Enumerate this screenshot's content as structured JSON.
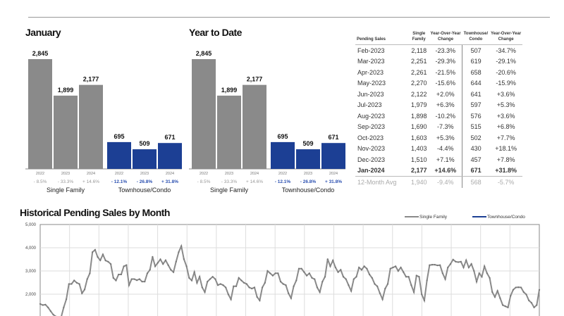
{
  "colors": {
    "single_family": "#8a8a8a",
    "townhouse": "#1c3f94",
    "line": "#8a8a8a"
  },
  "chart_data": [
    {
      "type": "bar",
      "title": "January",
      "groups": [
        "Single Family",
        "Townhouse/Condo"
      ],
      "categories": [
        "2022",
        "2023",
        "2024"
      ],
      "series": [
        {
          "name": "Single Family",
          "values": [
            2845,
            1899,
            2177
          ],
          "changes": [
            "- 8.5%",
            "- 33.3%",
            "+ 14.6%"
          ]
        },
        {
          "name": "Townhouse/Condo",
          "values": [
            695,
            509,
            671
          ],
          "changes": [
            "- 12.1%",
            "- 26.8%",
            "+ 31.8%"
          ]
        }
      ]
    },
    {
      "type": "bar",
      "title": "Year to Date",
      "groups": [
        "Single Family",
        "Townhouse/Condo"
      ],
      "categories": [
        "2022",
        "2023",
        "2024"
      ],
      "series": [
        {
          "name": "Single Family",
          "values": [
            2845,
            1899,
            2177
          ],
          "changes": [
            "- 8.5%",
            "- 33.3%",
            "+ 14.6%"
          ]
        },
        {
          "name": "Townhouse/Condo",
          "values": [
            695,
            509,
            671
          ],
          "changes": [
            "- 12.1%",
            "- 26.8%",
            "+ 31.8%"
          ]
        }
      ]
    },
    {
      "type": "line",
      "title": "Historical Pending Sales by Month",
      "ylim": [
        1000,
        5000
      ],
      "yticks": [
        "5,000",
        "4,000",
        "3,000",
        "2,000"
      ],
      "grid": true,
      "legend": "top-right",
      "legend_entries": [
        "Single Family",
        "Townhouse/Condo"
      ],
      "series": [
        {
          "name": "Single Family",
          "values": [
            1580,
            1530,
            1550,
            1430,
            1270,
            1120,
            1040,
            1000,
            1000,
            1430,
            1780,
            2440,
            2440,
            2590,
            2490,
            2440,
            2040,
            2200,
            2650,
            2900,
            3810,
            3910,
            3600,
            3460,
            3710,
            3450,
            3400,
            3300,
            2700,
            2590,
            2850,
            2850,
            3200,
            3250,
            2390,
            2650,
            2650,
            2600,
            2650,
            2540,
            2540,
            2900,
            3050,
            3610,
            3200,
            3350,
            3500,
            3300,
            3460,
            3250,
            3050,
            2950,
            3400,
            3810,
            4070,
            3510,
            3200,
            2700,
            2590,
            2950,
            2490,
            2750,
            2290,
            2090,
            2540,
            2650,
            2750,
            2650,
            2390,
            2440,
            2390,
            2290,
            1990,
            1780,
            2340,
            2340,
            2700,
            2590,
            2490,
            2440,
            2290,
            2240,
            2290,
            1880,
            1730,
            2290,
            2490,
            3000,
            2900,
            2800,
            2900,
            2900,
            2540,
            2440,
            2390,
            2040,
            1830,
            2340,
            2590,
            3100,
            3100,
            2950,
            2800,
            2900,
            2700,
            2650,
            2290,
            2090,
            2540,
            2750,
            3510,
            3200,
            3450,
            3150,
            2950,
            3050,
            2750,
            2650,
            2390,
            2140,
            2650,
            2750,
            3150,
            3050,
            3200,
            3100,
            2850,
            2700,
            2440,
            2340,
            2040,
            1780,
            2240,
            2440,
            3100,
            3150,
            3200,
            3000,
            3150,
            2950,
            2750,
            2750,
            2390,
            2090,
            2800,
            2750,
            1990,
            1730,
            2590,
            3250,
            3270,
            3270,
            3240,
            3250,
            2900,
            2650,
            3150,
            3300,
            3490,
            3400,
            3380,
            3400,
            3150,
            3460,
            3150,
            3300,
            3000,
            2540,
            2900,
            2750,
            3200,
            2900,
            2700,
            2090,
            1880,
            2140,
            1830,
            1530,
            1480,
            1430,
            1930,
            2190,
            2290,
            2300,
            2290,
            2090,
            1990,
            1730,
            1630,
            1430,
            1530,
            2190
          ]
        }
      ]
    }
  ],
  "table": {
    "headers": [
      "Pending Sales",
      "Single\nFamily",
      "Year-Over-Year\nChange",
      "Townhouse/\nCondo",
      "Year-Over-Year\nChange"
    ],
    "rows": [
      [
        "Feb-2023",
        "2,118",
        "-23.3%",
        "507",
        "-34.7%"
      ],
      [
        "Mar-2023",
        "2,251",
        "-29.3%",
        "619",
        "-29.1%"
      ],
      [
        "Apr-2023",
        "2,261",
        "-21.5%",
        "658",
        "-20.6%"
      ],
      [
        "May-2023",
        "2,270",
        "-15.6%",
        "644",
        "-15.9%"
      ],
      [
        "Jun-2023",
        "2,122",
        "+2.0%",
        "641",
        "+3.6%"
      ],
      [
        "Jul-2023",
        "1,979",
        "+6.3%",
        "597",
        "+5.3%"
      ],
      [
        "Aug-2023",
        "1,898",
        "-10.2%",
        "576",
        "+3.6%"
      ],
      [
        "Sep-2023",
        "1,690",
        "-7.3%",
        "515",
        "+6.8%"
      ],
      [
        "Oct-2023",
        "1,603",
        "+5.3%",
        "502",
        "+7.7%"
      ],
      [
        "Nov-2023",
        "1,403",
        "-4.4%",
        "430",
        "+18.1%"
      ],
      [
        "Dec-2023",
        "1,510",
        "+7.1%",
        "457",
        "+7.8%"
      ],
      [
        "Jan-2024",
        "2,177",
        "+14.6%",
        "671",
        "+31.8%"
      ],
      [
        "12-Month Avg",
        "1,940",
        "-9.4%",
        "568",
        "-5.7%"
      ]
    ]
  }
}
